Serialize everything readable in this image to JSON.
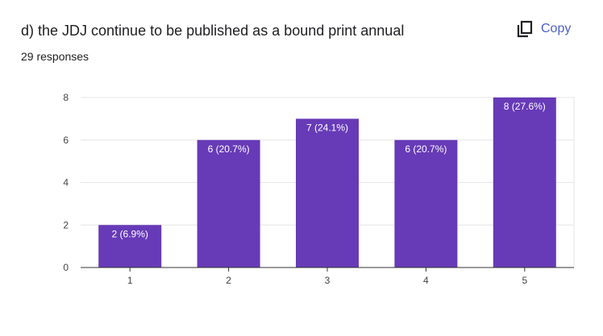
{
  "header": {
    "title": "d) the JDJ continue to be published as a bound print annual",
    "responses": "29 responses",
    "copy_label": "Copy",
    "copy_icon": "copy-icon"
  },
  "colors": {
    "bar": "#673ab7",
    "grid": "#e6e6e6",
    "axis": "#333333",
    "tick_text": "#444444",
    "bar_label_text": "#ffffff",
    "copy_accent": "#4a62c9"
  },
  "chart_data": {
    "type": "bar",
    "categories": [
      "1",
      "2",
      "3",
      "4",
      "5"
    ],
    "values": [
      2,
      6,
      7,
      6,
      8
    ],
    "data_labels": [
      "2 (6.9%)",
      "6 (20.7%)",
      "7 (24.1%)",
      "6 (20.7%)",
      "8 (27.6%)"
    ],
    "title": "",
    "xlabel": "",
    "ylabel": "",
    "ylim": [
      0,
      8
    ],
    "yticks": [
      0,
      2,
      4,
      6,
      8
    ],
    "grid": true,
    "legend": "none"
  }
}
